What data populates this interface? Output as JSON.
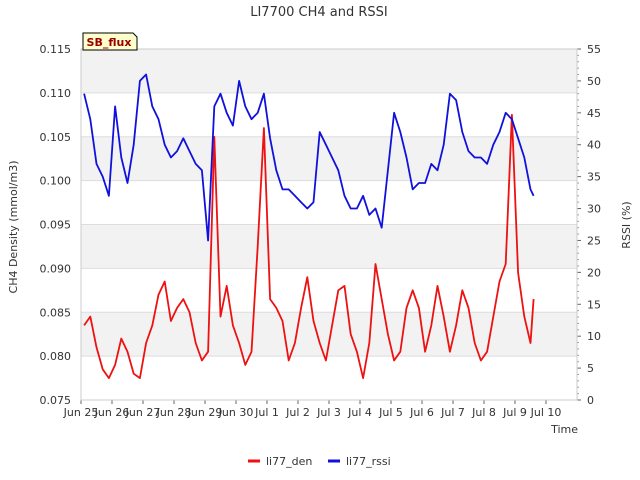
{
  "chart_data": {
    "type": "line",
    "title": "LI7700 CH4 and RSSI",
    "badge": "SB_flux",
    "xlabel": "Time",
    "ylabel_left": "CH4 Density (mmol/m3)",
    "ylabel_right": "RSSI (%)",
    "x_range_days": [
      0,
      16
    ],
    "ylim_left": [
      0.075,
      0.115
    ],
    "ylim_right": [
      0,
      55
    ],
    "x_ticks": [
      {
        "pos": 0,
        "label": "Jun 25"
      },
      {
        "pos": 1,
        "label": "Jun 26"
      },
      {
        "pos": 2,
        "label": "Jun 27"
      },
      {
        "pos": 3,
        "label": "Jun 28"
      },
      {
        "pos": 4,
        "label": "Jun 29"
      },
      {
        "pos": 5,
        "label": "Jun 30"
      },
      {
        "pos": 6,
        "label": "Jul 1"
      },
      {
        "pos": 7,
        "label": "Jul 2"
      },
      {
        "pos": 8,
        "label": "Jul 3"
      },
      {
        "pos": 9,
        "label": "Jul 4"
      },
      {
        "pos": 10,
        "label": "Jul 5"
      },
      {
        "pos": 11,
        "label": "Jul 6"
      },
      {
        "pos": 12,
        "label": "Jul 7"
      },
      {
        "pos": 13,
        "label": "Jul 8"
      },
      {
        "pos": 14,
        "label": "Jul 9"
      },
      {
        "pos": 15,
        "label": "Jul 10"
      }
    ],
    "y_ticks_left": [
      "0.075",
      "0.080",
      "0.085",
      "0.090",
      "0.095",
      "0.100",
      "0.105",
      "0.110",
      "0.115"
    ],
    "y_ticks_right": [
      "0",
      "5",
      "10",
      "15",
      "20",
      "25",
      "30",
      "35",
      "40",
      "45",
      "50",
      "55"
    ],
    "legend": [
      {
        "name": "li77_den",
        "color": "#ee1111"
      },
      {
        "name": "li77_rssi",
        "color": "#1111dd"
      }
    ],
    "series": [
      {
        "name": "li77_den",
        "axis": "left",
        "color": "#ee1111",
        "x": [
          0.1,
          0.3,
          0.5,
          0.7,
          0.9,
          1.1,
          1.3,
          1.5,
          1.7,
          1.9,
          2.1,
          2.3,
          2.5,
          2.7,
          2.9,
          3.1,
          3.3,
          3.5,
          3.7,
          3.9,
          4.1,
          4.3,
          4.5,
          4.7,
          4.9,
          5.1,
          5.3,
          5.5,
          5.7,
          5.9,
          6.1,
          6.3,
          6.5,
          6.7,
          6.9,
          7.1,
          7.3,
          7.5,
          7.7,
          7.9,
          8.1,
          8.3,
          8.5,
          8.7,
          8.9,
          9.1,
          9.3,
          9.5,
          9.7,
          9.9,
          10.1,
          10.3,
          10.5,
          10.7,
          10.9,
          11.1,
          11.3,
          11.5,
          11.7,
          11.9,
          12.1,
          12.3,
          12.5,
          12.7,
          12.9,
          13.1,
          13.3,
          13.5,
          13.7,
          13.9,
          14.1,
          14.3,
          14.5,
          14.6
        ],
        "y": [
          0.0835,
          0.0845,
          0.081,
          0.0785,
          0.0775,
          0.079,
          0.082,
          0.0805,
          0.078,
          0.0775,
          0.0815,
          0.0835,
          0.087,
          0.0885,
          0.084,
          0.0855,
          0.0865,
          0.085,
          0.0815,
          0.0795,
          0.0805,
          0.105,
          0.0845,
          0.088,
          0.0835,
          0.0815,
          0.079,
          0.0805,
          0.0925,
          0.106,
          0.0865,
          0.0855,
          0.084,
          0.0795,
          0.0815,
          0.0855,
          0.089,
          0.084,
          0.0815,
          0.0795,
          0.0835,
          0.0875,
          0.088,
          0.0825,
          0.0805,
          0.0775,
          0.0815,
          0.0905,
          0.0865,
          0.0825,
          0.0795,
          0.0805,
          0.0855,
          0.0875,
          0.0855,
          0.0805,
          0.0835,
          0.088,
          0.0845,
          0.0805,
          0.0835,
          0.0875,
          0.0855,
          0.0815,
          0.0795,
          0.0805,
          0.0845,
          0.0885,
          0.0905,
          0.1075,
          0.0895,
          0.0845,
          0.0815,
          0.0865
        ]
      },
      {
        "name": "li77_rssi",
        "axis": "right",
        "color": "#1111dd",
        "x": [
          0.1,
          0.3,
          0.5,
          0.7,
          0.9,
          1.1,
          1.3,
          1.5,
          1.7,
          1.9,
          2.1,
          2.3,
          2.5,
          2.7,
          2.9,
          3.1,
          3.3,
          3.5,
          3.7,
          3.9,
          4.1,
          4.3,
          4.5,
          4.7,
          4.9,
          5.1,
          5.3,
          5.5,
          5.7,
          5.9,
          6.1,
          6.3,
          6.5,
          6.7,
          6.9,
          7.1,
          7.3,
          7.5,
          7.7,
          7.9,
          8.1,
          8.3,
          8.5,
          8.7,
          8.9,
          9.1,
          9.3,
          9.5,
          9.7,
          9.9,
          10.1,
          10.3,
          10.5,
          10.7,
          10.9,
          11.1,
          11.3,
          11.5,
          11.7,
          11.9,
          12.1,
          12.3,
          12.5,
          12.7,
          12.9,
          13.1,
          13.3,
          13.5,
          13.7,
          13.9,
          14.1,
          14.3,
          14.5,
          14.6
        ],
        "y": [
          48,
          44,
          37,
          35,
          32,
          46,
          38,
          34,
          40,
          50,
          51,
          46,
          44,
          40,
          38,
          39,
          41,
          39,
          37,
          36,
          25,
          46,
          48,
          45,
          43,
          50,
          46,
          44,
          45,
          48,
          41,
          36,
          33,
          33,
          32,
          31,
          30,
          31,
          42,
          40,
          38,
          36,
          32,
          30,
          30,
          32,
          29,
          30,
          27,
          36,
          45,
          42,
          38,
          33,
          34,
          34,
          37,
          36,
          40,
          48,
          47,
          42,
          39,
          38,
          38,
          37,
          40,
          42,
          45,
          44,
          41,
          38,
          33,
          32
        ]
      }
    ]
  }
}
